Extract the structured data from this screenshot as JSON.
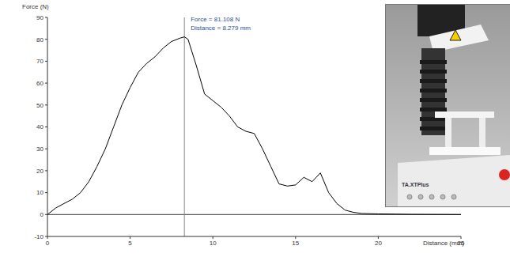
{
  "chart_data": {
    "type": "line",
    "x_label": "Distance (mm)",
    "y_label": "Force (N)",
    "x": [
      0,
      0.5,
      1,
      1.5,
      2,
      2.5,
      3,
      3.5,
      4,
      4.5,
      5,
      5.5,
      6,
      6.5,
      7,
      7.5,
      8,
      8.279,
      8.5,
      9,
      9.5,
      10,
      10.5,
      11,
      11.5,
      12,
      12.5,
      13,
      13.5,
      14,
      14.5,
      15,
      15.5,
      16,
      16.5,
      17,
      17.5,
      18,
      18.5,
      19,
      20,
      21,
      22,
      25
    ],
    "values": [
      0,
      3,
      5,
      7,
      10,
      15,
      22,
      30,
      40,
      50,
      58,
      65,
      69,
      72,
      76,
      79,
      80.5,
      81.108,
      80,
      68,
      55,
      52,
      49,
      45,
      40,
      38,
      37,
      30,
      22,
      14,
      13,
      13.5,
      17,
      15,
      19,
      10,
      5,
      2,
      1,
      0.5,
      0.3,
      0.2,
      0.1,
      0
    ],
    "color": "#000000",
    "xlim": [
      0,
      25
    ],
    "xticks": [
      0,
      5,
      10,
      15,
      20,
      25
    ],
    "ylim": [
      -10,
      90
    ],
    "yticks": [
      -10,
      0,
      10,
      20,
      30,
      40,
      50,
      60,
      70,
      80,
      90
    ],
    "grid": false,
    "annotations": [
      {
        "x": 8.279,
        "y": 81.108,
        "text": [
          "Force = 81.108 N",
          "Distance = 8.279 mm"
        ]
      }
    ],
    "inset_label": "TA.XTPlus"
  }
}
